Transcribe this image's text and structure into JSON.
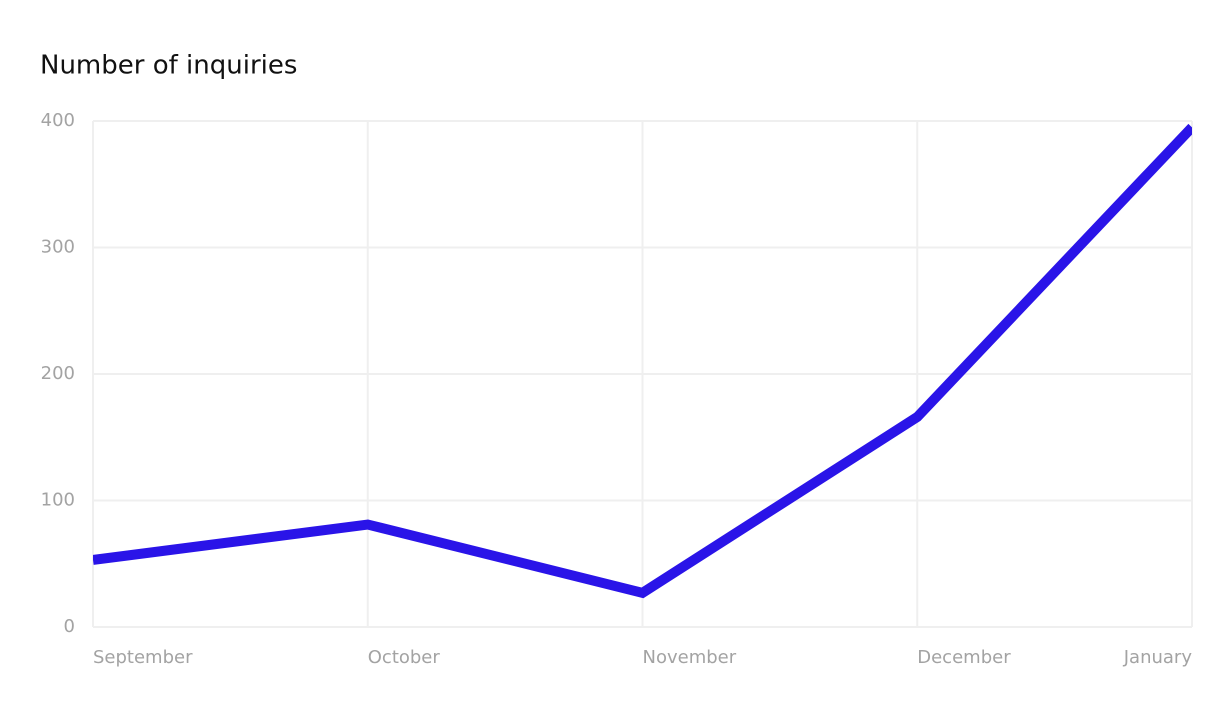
{
  "chart_data": {
    "type": "line",
    "title": "Number of inquiries",
    "categories": [
      "September",
      "October",
      "November",
      "December",
      "January"
    ],
    "series": [
      {
        "name": "Inquiries",
        "color": "#2a14e8",
        "values": [
          53,
          81,
          27,
          166,
          395
        ]
      }
    ],
    "ylim": [
      0,
      400
    ],
    "yticks": [
      0,
      100,
      200,
      300,
      400
    ],
    "grid": true
  }
}
